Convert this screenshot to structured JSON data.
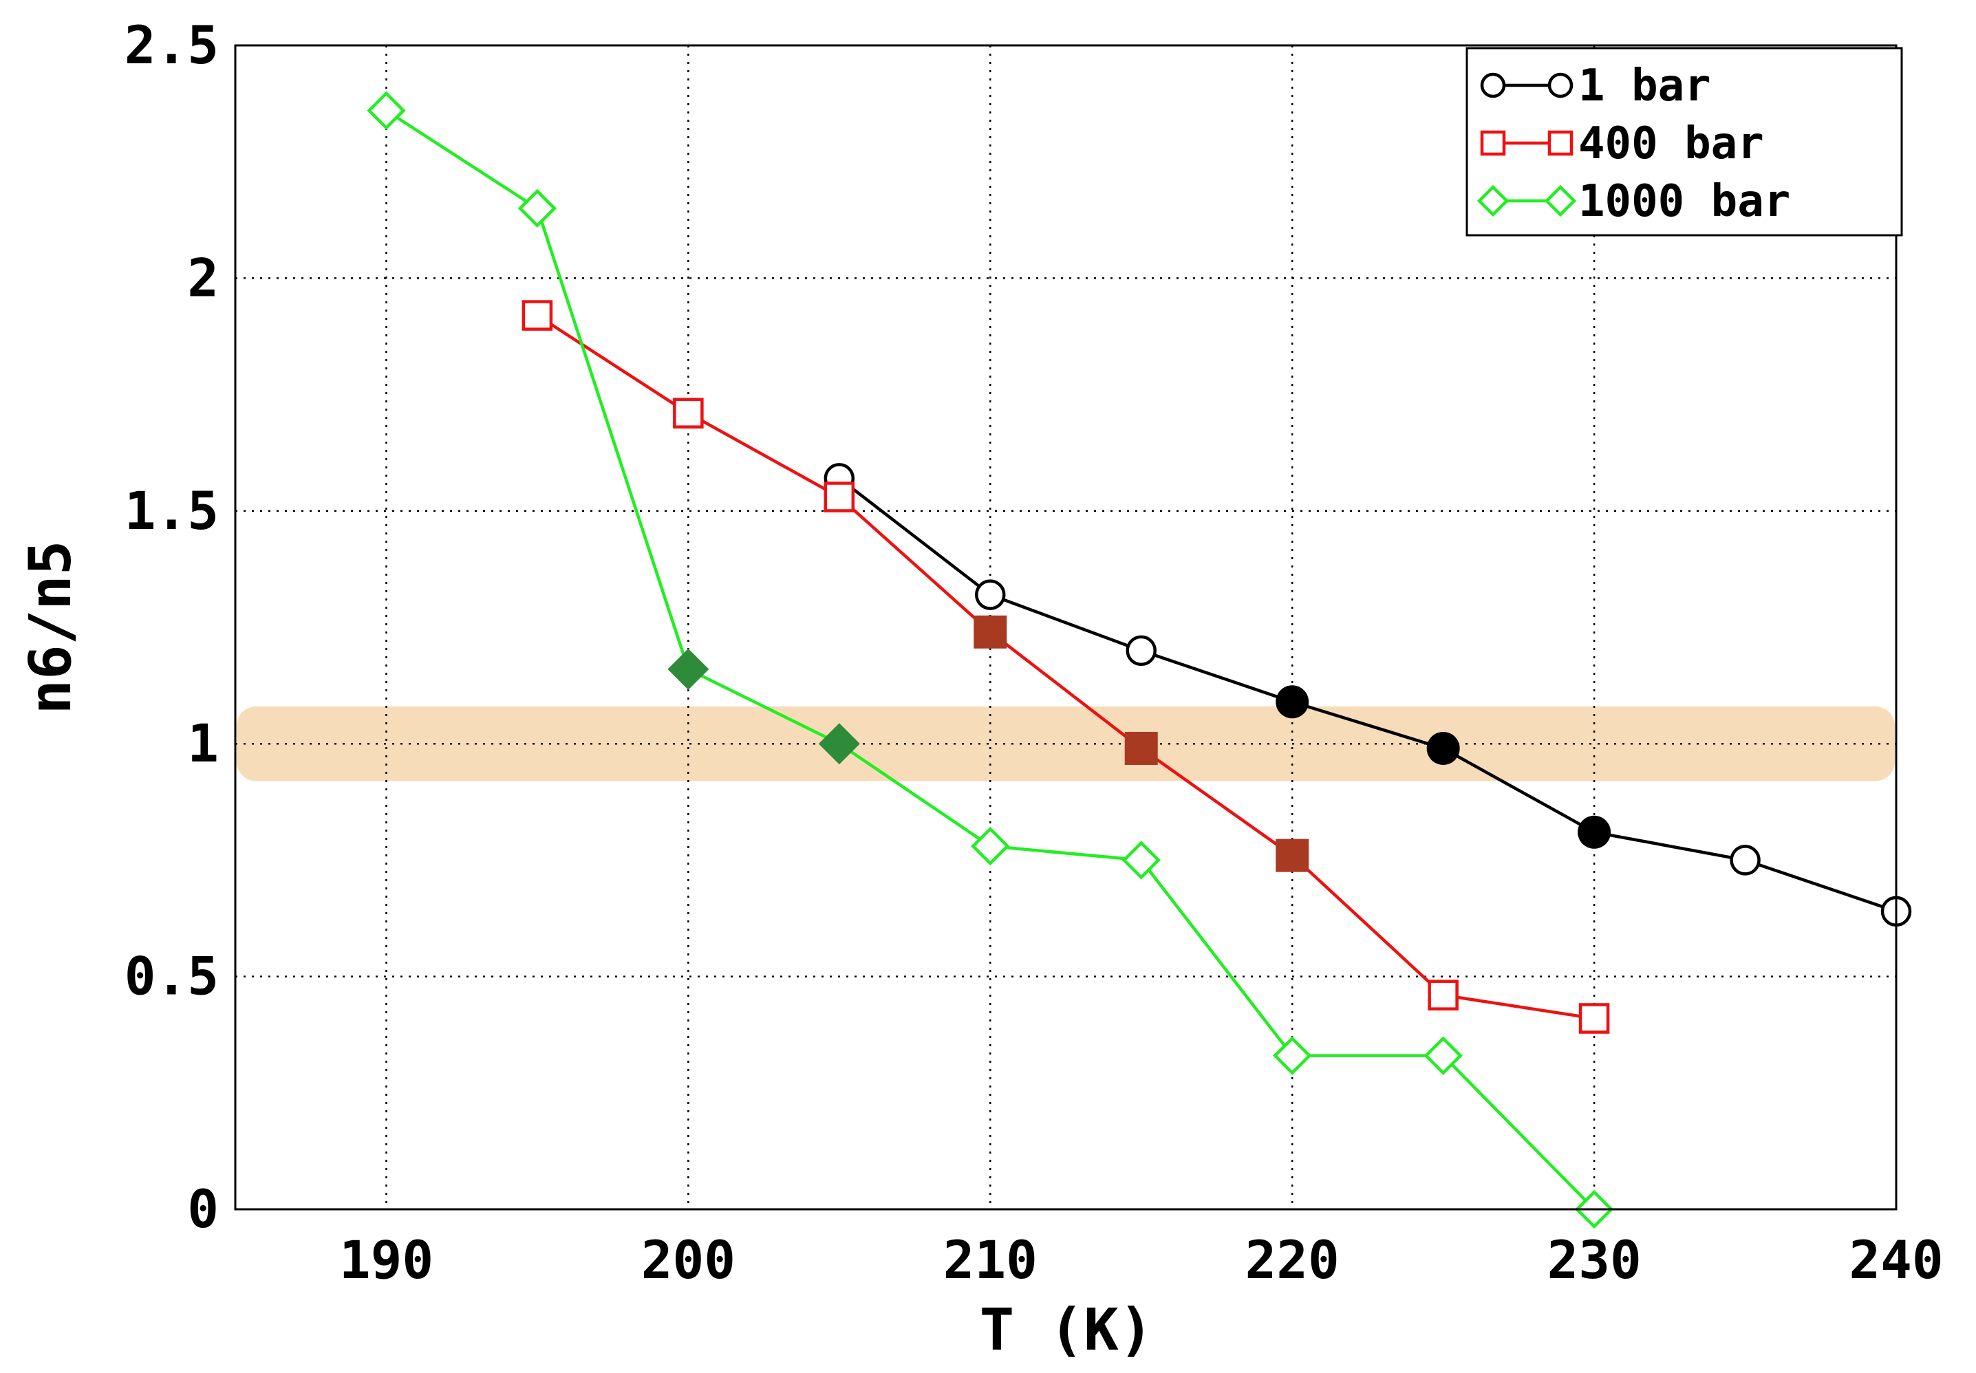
{
  "chart_data": {
    "type": "line",
    "xlabel": "T (K)",
    "ylabel": "n6/n5",
    "xlim": [
      185,
      240
    ],
    "ylim": [
      0,
      2.5
    ],
    "xticks": [
      "190",
      "200",
      "210",
      "220",
      "230",
      "240"
    ],
    "yticks": [
      "0",
      "0.5",
      "1",
      "1.5",
      "2",
      "2.5"
    ],
    "grid": true,
    "grid_style": "dotted",
    "legend_position": "top-right",
    "highlight_band": {
      "y_from": 0.92,
      "y_to": 1.08,
      "color": "#f6dcb8"
    },
    "series": [
      {
        "name": "1 bar",
        "color": "#000000",
        "filled_color": "#000000",
        "marker": "circle",
        "x": [
          205,
          210,
          215,
          220,
          225,
          230,
          235,
          240
        ],
        "y": [
          1.57,
          1.32,
          1.2,
          1.09,
          0.99,
          0.81,
          0.75,
          0.64
        ],
        "filled": [
          false,
          false,
          false,
          true,
          true,
          true,
          false,
          false
        ]
      },
      {
        "name": "400 bar",
        "color": "#ee1111",
        "filled_color": "#a83a22",
        "marker": "square",
        "x": [
          195,
          200,
          205,
          210,
          215,
          220,
          225,
          230
        ],
        "y": [
          1.92,
          1.71,
          1.53,
          1.24,
          0.99,
          0.76,
          0.46,
          0.41
        ],
        "filled": [
          false,
          false,
          false,
          true,
          true,
          true,
          false,
          false
        ]
      },
      {
        "name": "1000 bar",
        "color": "#22ee22",
        "filled_color": "#2e8b3a",
        "marker": "diamond",
        "x": [
          190,
          195,
          200,
          205,
          210,
          215,
          220,
          225,
          230
        ],
        "y": [
          2.36,
          2.15,
          1.16,
          1.0,
          0.78,
          0.75,
          0.33,
          0.33,
          0.0
        ],
        "filled": [
          false,
          false,
          true,
          true,
          false,
          false,
          false,
          false,
          false
        ]
      }
    ]
  }
}
